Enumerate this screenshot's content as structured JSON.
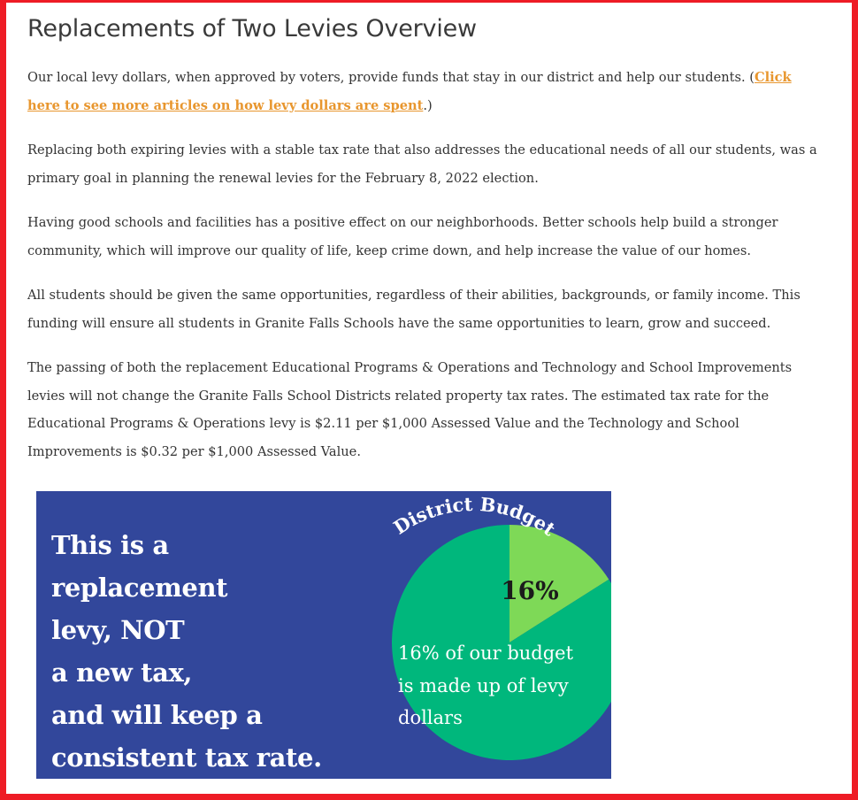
{
  "page": {
    "title": "Replacements of Two Levies Overview",
    "paragraphs": {
      "p1_text": "Our local levy dollars, when approved by voters, provide funds that stay in our district and help our students. (",
      "p1_link": "Click here to see more articles on how levy dollars are spent",
      "p1_end": ".)",
      "p2": "Replacing both expiring levies with a stable tax rate that also addresses the educational needs of all our students, was a primary goal in planning the renewal levies for the February 8, 2022 election.",
      "p3": "Having good schools and facilities has a positive effect on our neighborhoods. Better schools help build a stronger community, which will improve our quality of life, keep crime down, and help increase the value of our homes.",
      "p4": "All students should be given the same opportunities, regardless of their abilities, backgrounds, or family income. This funding will ensure all students in Granite Falls Schools have the same opportunities to learn, grow and succeed.",
      "p5": "The passing of both the replacement Educational Programs & Operations and Technology and School Improvements levies will not change the Granite Falls School Districts related property tax rates. The estimated tax rate for the Educational Programs & Operations levy is $2.11 per $1,000 Assessed Value and the Technology and School Improvements is $0.32 per $1,000 Assessed Value."
    }
  },
  "banner": {
    "lines": [
      "This is a replacement",
      "levy, NOT",
      "a new tax,",
      "and will keep a",
      "consistent tax rate."
    ],
    "pie_caption_lines": [
      "16% of our budget",
      "is made up of levy",
      "dollars"
    ]
  },
  "colors": {
    "frame": "#ee1c25",
    "link": "#e8962e",
    "banner_bg": "#32479b",
    "pie_main": "#00b77c",
    "pie_slice": "#7ed957"
  },
  "chart_data": {
    "type": "pie",
    "title": "District Budget",
    "slices": [
      {
        "label": "16%",
        "value": 16,
        "color": "#7ed957"
      },
      {
        "label": "",
        "value": 84,
        "color": "#00b77c"
      }
    ]
  }
}
